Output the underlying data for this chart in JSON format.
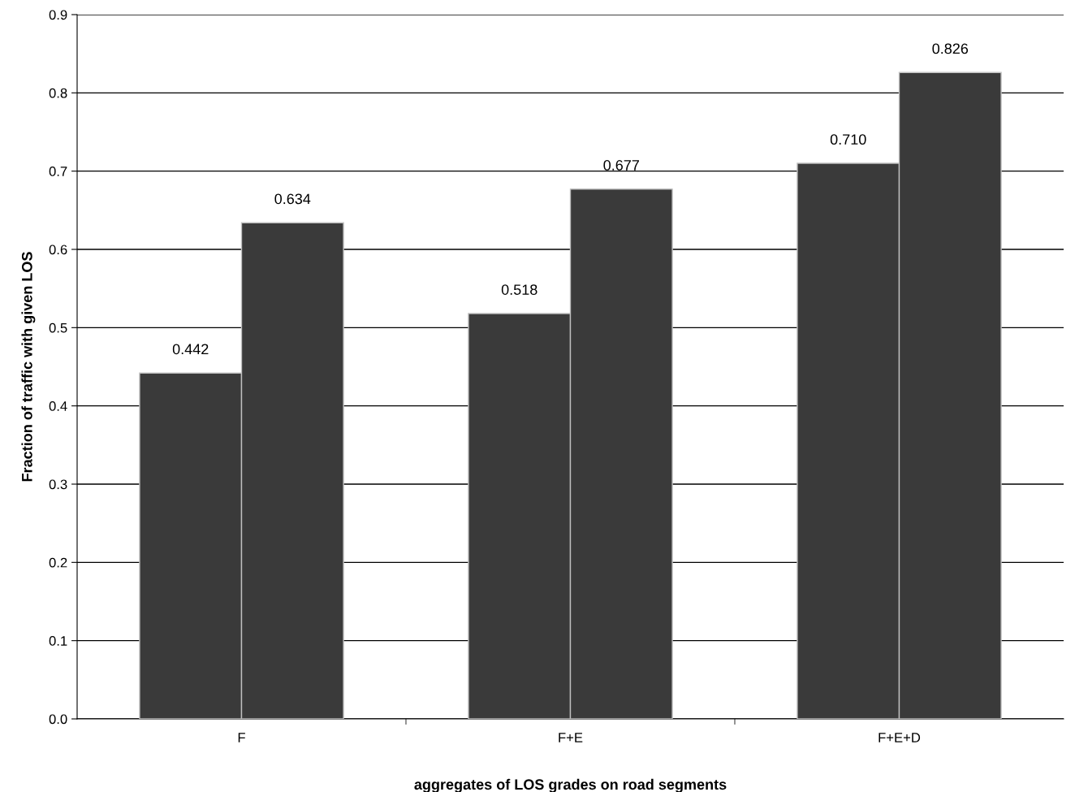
{
  "chart_data": {
    "type": "bar",
    "xlabel": "aggregates of LOS grades on road segments",
    "ylabel": "Fraction of traffic with given LOS",
    "categories": [
      "F",
      "F+E",
      "F+E+D"
    ],
    "series": [
      {
        "color": "#3a3a3a",
        "values": [
          0.442,
          0.518,
          0.71
        ],
        "value_labels": [
          "0.442",
          "0.518",
          "0.710"
        ]
      },
      {
        "color": "#3a3a3a",
        "values": [
          0.634,
          0.677,
          0.826
        ],
        "value_labels": [
          "0.634",
          "0.677",
          "0.826"
        ]
      }
    ],
    "ylim": [
      0,
      0.9
    ],
    "yticks": [
      {
        "value": 0,
        "label": "0.0"
      },
      0.1,
      0.2,
      0.3,
      0.4,
      0.5,
      0.6,
      0.7,
      0.8,
      0.9
    ],
    "grid": "y",
    "legend": false
  }
}
